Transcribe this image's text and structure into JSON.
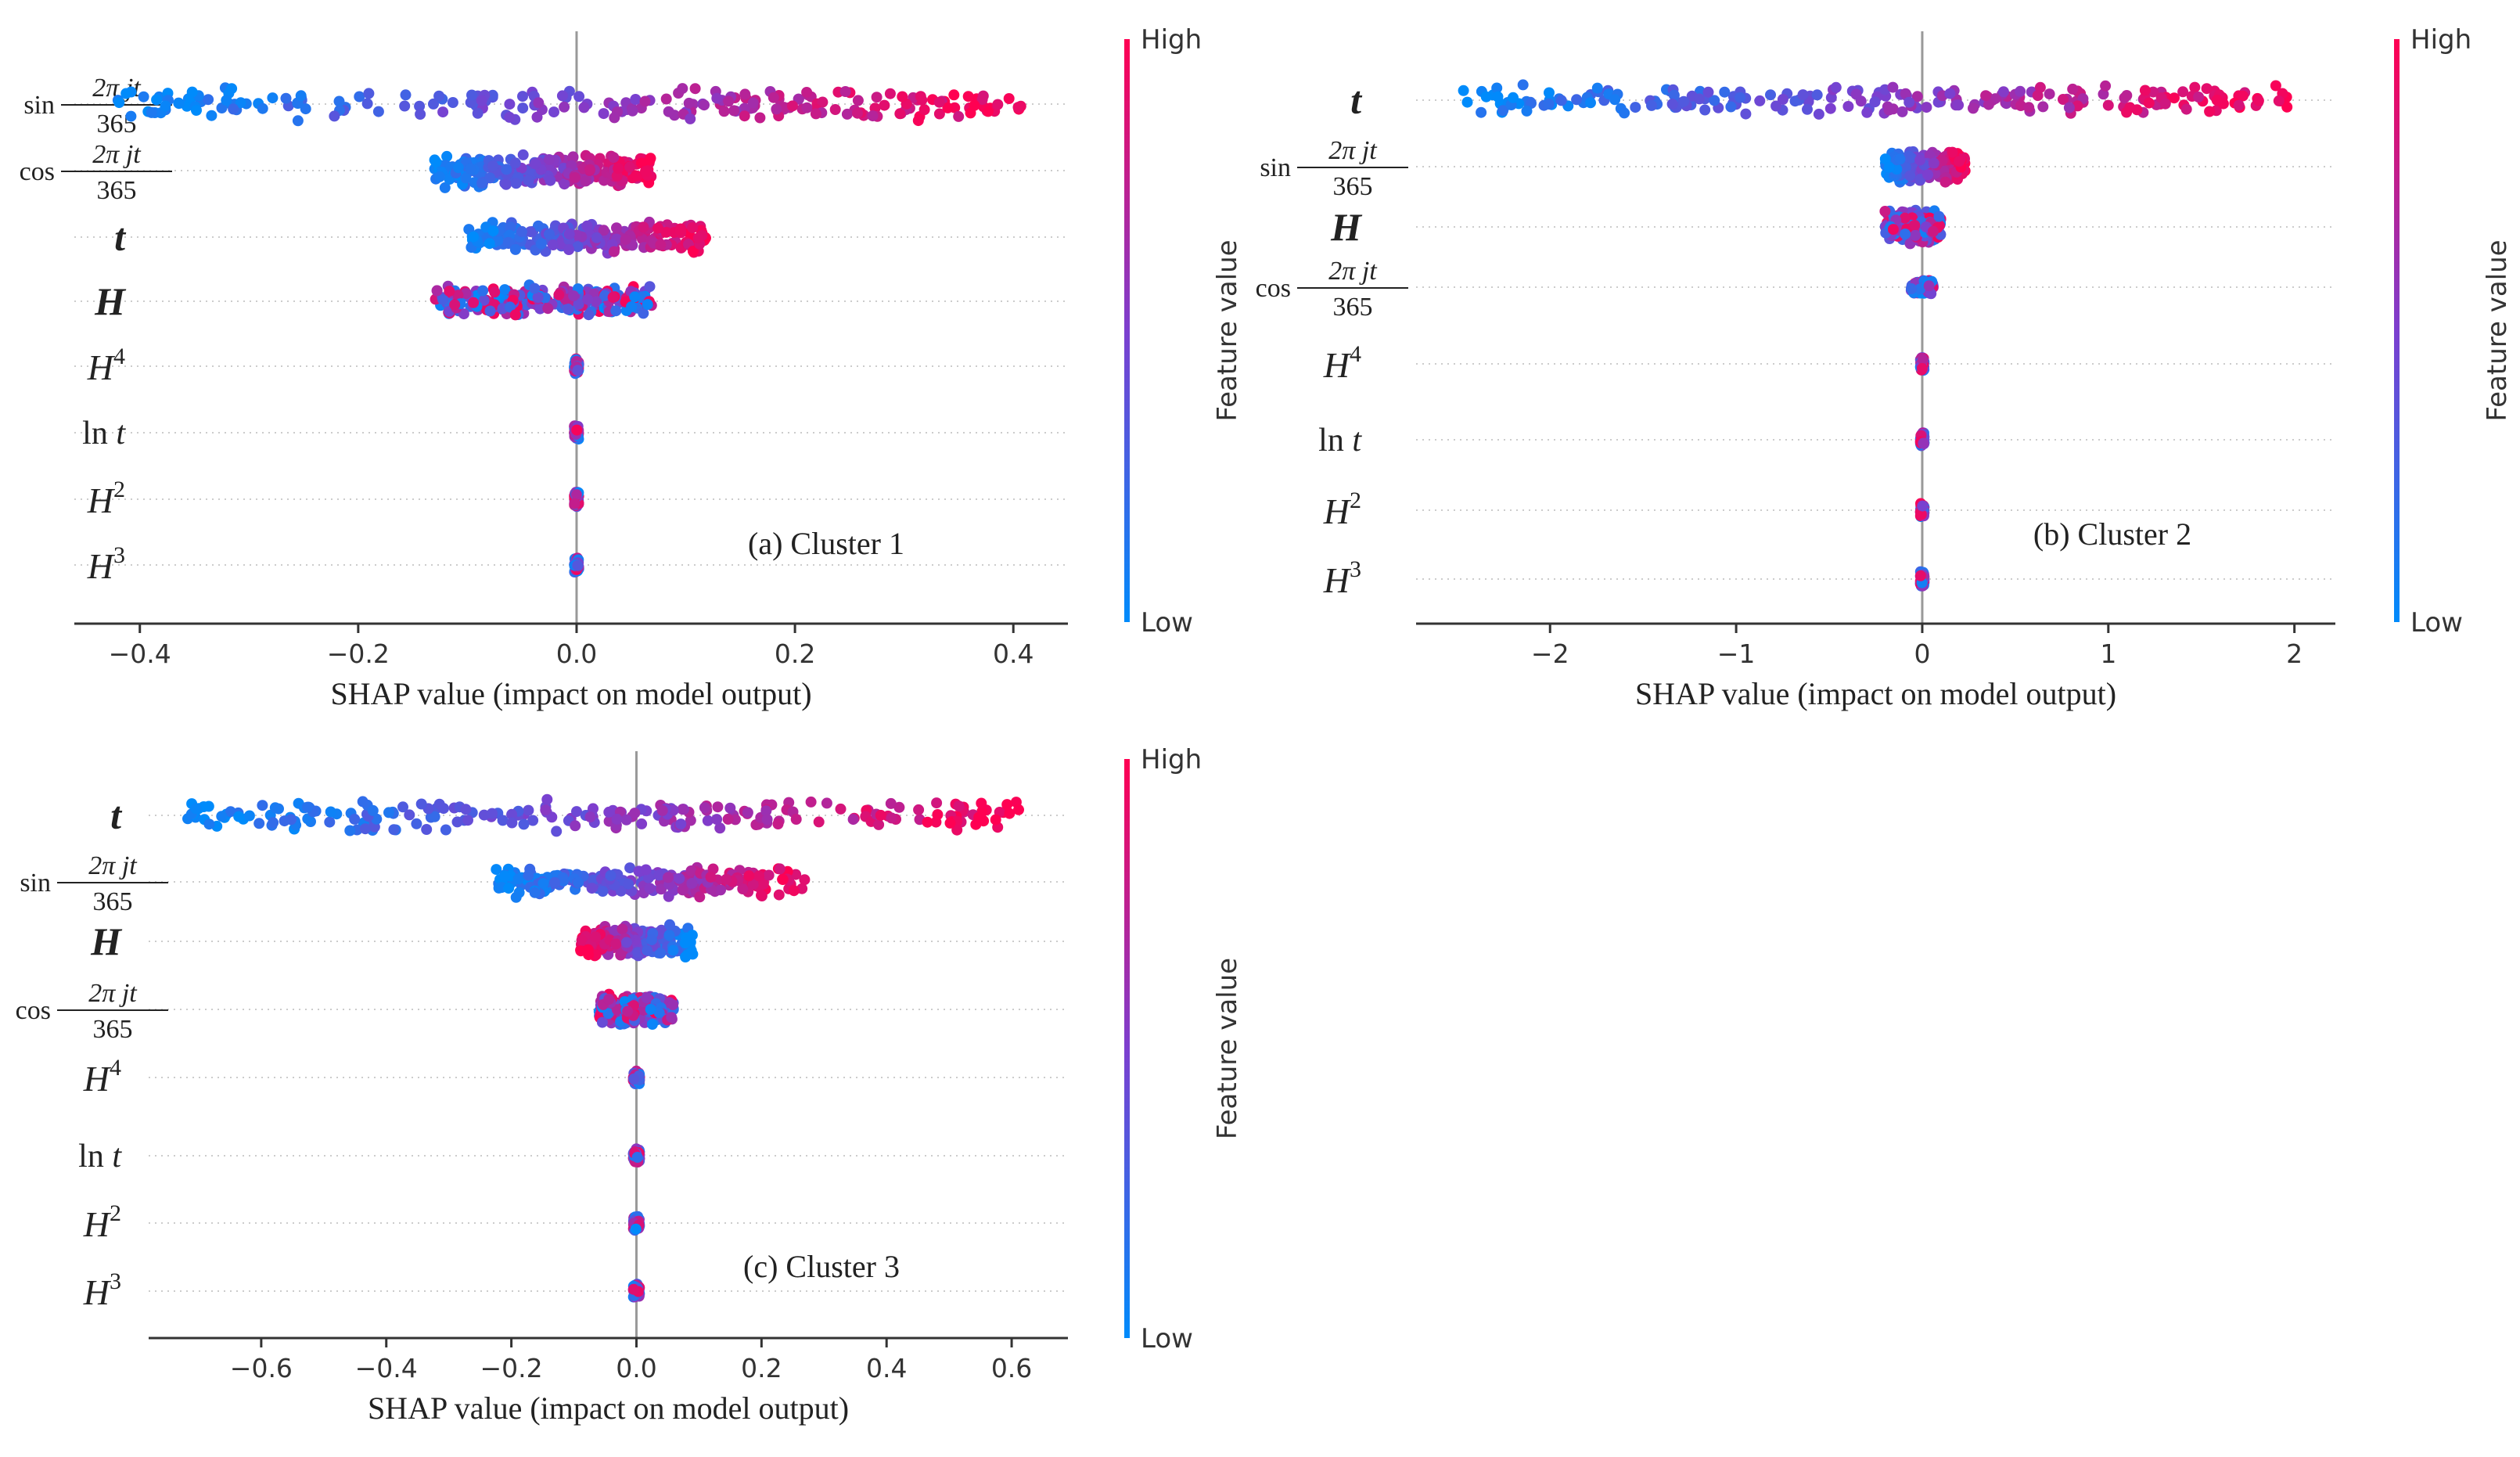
{
  "colors": {
    "low": "#008bfb",
    "mid": "#7c3fcf",
    "high": "#ff0052",
    "axis": "#333333",
    "zero_line": "#999999",
    "grid": "#cccccc"
  },
  "chart_data": [
    {
      "type": "scatter",
      "subtype": "shap-beeswarm",
      "panel_label": "(a) Cluster 1",
      "xlabel": "SHAP value (impact on model output)",
      "xlim": [
        -0.46,
        0.45
      ],
      "xticks": [
        -0.4,
        -0.2,
        0.0,
        0.2,
        0.4
      ],
      "xtick_labels": [
        "−0.4",
        "−0.2",
        "0.0",
        "0.2",
        "0.4"
      ],
      "colorbar": {
        "title": "Feature value",
        "high": "High",
        "low": "Low"
      },
      "features": [
        {
          "label": "sin 2πjt/365",
          "kind": "sin",
          "func": "sin",
          "num": "2π jt",
          "den": "365",
          "spread": [
            -0.42,
            0.41
          ],
          "hi": "right"
        },
        {
          "label": "cos 2πjt/365",
          "kind": "sin",
          "func": "cos",
          "num": "2π jt",
          "den": "365",
          "spread": [
            -0.13,
            0.07
          ],
          "hi": "right"
        },
        {
          "label": "t",
          "kind": "bold",
          "text": "t",
          "spread": [
            -0.1,
            0.12
          ],
          "hi": "right"
        },
        {
          "label": "H",
          "kind": "bold",
          "text": "H",
          "spread": [
            -0.13,
            0.07
          ],
          "hi": "mixed"
        },
        {
          "label": "H⁴",
          "kind": "pow",
          "base": "H",
          "exp": "4",
          "spread": [
            -0.002,
            0.002
          ],
          "hi": "mixed"
        },
        {
          "label": "ln t",
          "kind": "ln",
          "func": "ln",
          "arg": "t",
          "spread": [
            -0.002,
            0.002
          ],
          "hi": "mixed"
        },
        {
          "label": "H²",
          "kind": "pow",
          "base": "H",
          "exp": "2",
          "spread": [
            -0.002,
            0.002
          ],
          "hi": "mixed"
        },
        {
          "label": "H³",
          "kind": "pow",
          "base": "H",
          "exp": "3",
          "spread": [
            -0.002,
            0.002
          ],
          "hi": "mixed"
        }
      ]
    },
    {
      "type": "scatter",
      "subtype": "shap-beeswarm",
      "panel_label": "(b) Cluster 2",
      "xlabel": "SHAP value (impact on model output)",
      "xlim": [
        -2.72,
        2.22
      ],
      "xticks": [
        -2,
        -1,
        0,
        1,
        2
      ],
      "xtick_labels": [
        "−2",
        "−1",
        "0",
        "1",
        "2"
      ],
      "colorbar": {
        "title": "Feature value",
        "high": "High",
        "low": "Low"
      },
      "features": [
        {
          "label": "t",
          "kind": "bold",
          "text": "t",
          "spread": [
            -2.5,
            1.98
          ],
          "hi": "right"
        },
        {
          "label": "sin 2πjt/365",
          "kind": "sin",
          "func": "sin",
          "num": "2π jt",
          "den": "365",
          "spread": [
            -0.2,
            0.23
          ],
          "hi": "right"
        },
        {
          "label": "H",
          "kind": "bold",
          "text": "H",
          "spread": [
            -0.2,
            0.1
          ],
          "hi": "mixed"
        },
        {
          "label": "cos 2πjt/365",
          "kind": "sin",
          "func": "cos",
          "num": "2π jt",
          "den": "365",
          "spread": [
            -0.06,
            0.06
          ],
          "hi": "mixed"
        },
        {
          "label": "H⁴",
          "kind": "pow",
          "base": "H",
          "exp": "4",
          "spread": [
            -0.01,
            0.01
          ],
          "hi": "mixed"
        },
        {
          "label": "ln t",
          "kind": "ln",
          "func": "ln",
          "arg": "t",
          "spread": [
            -0.01,
            0.01
          ],
          "hi": "mixed"
        },
        {
          "label": "H²",
          "kind": "pow",
          "base": "H",
          "exp": "2",
          "spread": [
            -0.01,
            0.01
          ],
          "hi": "mixed"
        },
        {
          "label": "H³",
          "kind": "pow",
          "base": "H",
          "exp": "3",
          "spread": [
            -0.01,
            0.01
          ],
          "hi": "mixed"
        }
      ]
    },
    {
      "type": "scatter",
      "subtype": "shap-beeswarm",
      "panel_label": "(c) Cluster 3",
      "xlabel": "SHAP value (impact on model output)",
      "xlim": [
        -0.78,
        0.69
      ],
      "xticks": [
        -0.6,
        -0.4,
        -0.2,
        0.0,
        0.2,
        0.4,
        0.6
      ],
      "xtick_labels": [
        "−0.6",
        "−0.4",
        "−0.2",
        "0.0",
        "0.2",
        "0.4",
        "0.6"
      ],
      "colorbar": {
        "title": "Feature value",
        "high": "High",
        "low": "Low"
      },
      "features": [
        {
          "label": "t",
          "kind": "bold",
          "text": "t",
          "spread": [
            -0.72,
            0.62
          ],
          "hi": "right"
        },
        {
          "label": "sin 2πjt/365",
          "kind": "sin",
          "func": "sin",
          "num": "2π jt",
          "den": "365",
          "spread": [
            -0.23,
            0.27
          ],
          "hi": "right"
        },
        {
          "label": "H",
          "kind": "bold",
          "text": "H",
          "spread": [
            -0.09,
            0.09
          ],
          "hi": "left"
        },
        {
          "label": "cos 2πjt/365",
          "kind": "sin",
          "func": "cos",
          "num": "2π jt",
          "den": "365",
          "spread": [
            -0.06,
            0.06
          ],
          "hi": "mixed"
        },
        {
          "label": "H⁴",
          "kind": "pow",
          "base": "H",
          "exp": "4",
          "spread": [
            -0.005,
            0.005
          ],
          "hi": "mixed"
        },
        {
          "label": "ln t",
          "kind": "ln",
          "func": "ln",
          "arg": "t",
          "spread": [
            -0.005,
            0.005
          ],
          "hi": "mixed"
        },
        {
          "label": "H²",
          "kind": "pow",
          "base": "H",
          "exp": "2",
          "spread": [
            -0.005,
            0.005
          ],
          "hi": "mixed"
        },
        {
          "label": "H³",
          "kind": "pow",
          "base": "H",
          "exp": "3",
          "spread": [
            -0.005,
            0.005
          ],
          "hi": "mixed"
        }
      ]
    }
  ]
}
